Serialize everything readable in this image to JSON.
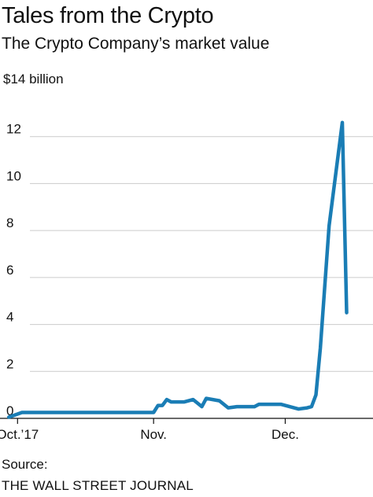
{
  "chart_data": {
    "type": "line",
    "title": "Tales from the Crypto",
    "subtitle": "The Crypto Company’s market value",
    "ylabel": "",
    "y_unit_label": "$14 billion",
    "ylim": [
      0,
      14
    ],
    "y_ticks": [
      {
        "value": 0,
        "label": "0"
      },
      {
        "value": 2,
        "label": "2"
      },
      {
        "value": 4,
        "label": "4"
      },
      {
        "value": 6,
        "label": "6"
      },
      {
        "value": 8,
        "label": "8"
      },
      {
        "value": 10,
        "label": "10"
      },
      {
        "value": 12,
        "label": "12"
      }
    ],
    "x_ticks": [
      {
        "date": "2017-10-01",
        "label": "Oct.’17"
      },
      {
        "date": "2017-11-01",
        "label": "Nov."
      },
      {
        "date": "2017-12-01",
        "label": "Dec."
      }
    ],
    "xlim": [
      "2017-09-27",
      "2017-12-21"
    ],
    "grid": true,
    "line_color": "#1a7db5",
    "series": [
      {
        "points": [
          [
            "2017-09-29",
            0.05
          ],
          [
            "2017-10-02",
            0.25
          ],
          [
            "2017-10-10",
            0.25
          ],
          [
            "2017-10-20",
            0.25
          ],
          [
            "2017-10-26",
            0.25
          ],
          [
            "2017-11-01",
            0.25
          ],
          [
            "2017-11-02",
            0.55
          ],
          [
            "2017-11-03",
            0.55
          ],
          [
            "2017-11-04",
            0.8
          ],
          [
            "2017-11-05",
            0.7
          ],
          [
            "2017-11-08",
            0.7
          ],
          [
            "2017-11-10",
            0.8
          ],
          [
            "2017-11-12",
            0.5
          ],
          [
            "2017-11-13",
            0.85
          ],
          [
            "2017-11-16",
            0.75
          ],
          [
            "2017-11-18",
            0.45
          ],
          [
            "2017-11-20",
            0.5
          ],
          [
            "2017-11-22",
            0.5
          ],
          [
            "2017-11-24",
            0.5
          ],
          [
            "2017-11-25",
            0.6
          ],
          [
            "2017-11-28",
            0.6
          ],
          [
            "2017-11-30",
            0.6
          ],
          [
            "2017-12-04",
            0.4
          ],
          [
            "2017-12-06",
            0.45
          ],
          [
            "2017-12-07",
            0.5
          ],
          [
            "2017-12-08",
            1.0
          ],
          [
            "2017-12-09",
            3.0
          ],
          [
            "2017-12-11",
            8.2
          ],
          [
            "2017-12-14",
            12.6
          ],
          [
            "2017-12-15",
            4.5
          ]
        ]
      }
    ]
  },
  "source": {
    "label": "Source:",
    "name": "THE WALL STREET JOURNAL"
  }
}
